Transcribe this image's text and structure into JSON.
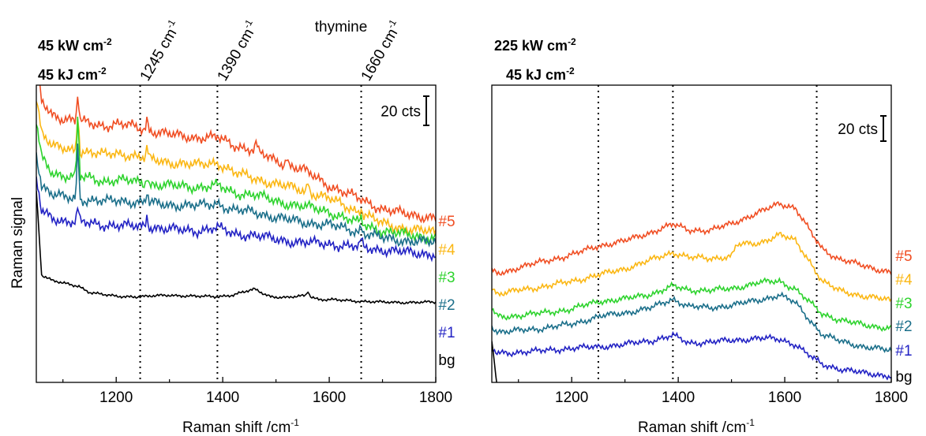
{
  "figure": {
    "ylabel": "Raman signal",
    "xlabel": "Raman shift /cm",
    "xlabel_sup": "-1",
    "center_label": "thymine"
  },
  "chart_data": [
    {
      "type": "line",
      "power_label": {
        "text": "45 kW cm",
        "sup": "-2"
      },
      "fluence_label": {
        "text": "45 kJ cm",
        "sup": "-2"
      },
      "peak_labels": [
        {
          "text": "1245 cm",
          "sup": "-1",
          "x": 1245
        },
        {
          "text": "1390 cm",
          "sup": "-1",
          "x": 1390
        },
        {
          "text": "1660 cm",
          "sup": "-1",
          "x": 1660
        }
      ],
      "scale_bar": {
        "label": "20 cts",
        "counts": 20
      },
      "xlim": [
        1050,
        1800
      ],
      "xticks": [
        1200,
        1400,
        1600,
        1800
      ],
      "vlines": [
        1245,
        1390,
        1660
      ],
      "series": [
        {
          "name": "#5",
          "color": "#f04e23",
          "x": [
            1050,
            1060,
            1080,
            1100,
            1128,
            1150,
            1180,
            1200,
            1230,
            1260,
            1300,
            1350,
            1390,
            1420,
            1460,
            1500,
            1550,
            1600,
            1650,
            1700,
            1750,
            1800
          ],
          "y": [
            127,
            101,
            92,
            89,
            87,
            86,
            84,
            85,
            84,
            81,
            78,
            76,
            76,
            71,
            67,
            60,
            54,
            43,
            35,
            27,
            23,
            21
          ],
          "spikes": [
            {
              "x": 1128,
              "h": 20
            },
            {
              "x": 1258,
              "h": 8
            },
            {
              "x": 1463,
              "h": 6
            },
            {
              "x": 1520,
              "h": 5
            }
          ]
        },
        {
          "name": "#4",
          "color": "#fbb714",
          "x": [
            1050,
            1060,
            1080,
            1100,
            1128,
            1150,
            1180,
            1200,
            1230,
            1260,
            1300,
            1350,
            1390,
            1420,
            1460,
            1500,
            1550,
            1600,
            1650,
            1700,
            1750,
            1800
          ],
          "y": [
            104,
            80,
            70,
            68,
            67,
            66,
            64,
            65,
            64,
            61,
            59,
            57,
            59,
            52,
            48,
            44,
            40,
            34,
            26,
            17,
            13,
            11
          ],
          "spikes": [
            {
              "x": 1128,
              "h": 30
            },
            {
              "x": 1258,
              "h": 8
            },
            {
              "x": 1560,
              "h": 7
            },
            {
              "x": 1660,
              "h": 4
            }
          ]
        },
        {
          "name": "#3",
          "color": "#2ed32e",
          "x": [
            1050,
            1060,
            1080,
            1100,
            1128,
            1150,
            1180,
            1200,
            1230,
            1260,
            1300,
            1350,
            1390,
            1420,
            1460,
            1500,
            1550,
            1600,
            1650,
            1700,
            1750,
            1800
          ],
          "y": [
            86,
            62,
            52,
            50,
            49,
            48,
            46,
            47,
            46,
            44,
            43,
            42,
            43,
            38,
            37,
            32,
            29,
            25,
            18,
            12,
            9,
            7
          ],
          "spikes": [
            {
              "x": 1128,
              "h": 45
            },
            {
              "x": 1258,
              "h": 7
            },
            {
              "x": 1660,
              "h": 4
            }
          ]
        },
        {
          "name": "#2",
          "color": "#1b6f8a",
          "x": [
            1050,
            1060,
            1080,
            1100,
            1128,
            1150,
            1180,
            1200,
            1230,
            1260,
            1300,
            1350,
            1390,
            1420,
            1460,
            1500,
            1550,
            1600,
            1650,
            1700,
            1750,
            1800
          ],
          "y": [
            66,
            43,
            37,
            35,
            34,
            33,
            32,
            33,
            32,
            31,
            30,
            29,
            31,
            26,
            25,
            21,
            18,
            16,
            12,
            7,
            5,
            4
          ],
          "spikes": [
            {
              "x": 1128,
              "h": 40
            },
            {
              "x": 1258,
              "h": 8
            },
            {
              "x": 1660,
              "h": 4
            }
          ]
        },
        {
          "name": "#1",
          "color": "#2323c4",
          "x": [
            1050,
            1060,
            1080,
            1100,
            1128,
            1150,
            1180,
            1200,
            1230,
            1260,
            1300,
            1350,
            1390,
            1420,
            1460,
            1500,
            1550,
            1600,
            1650,
            1700,
            1750,
            1800
          ],
          "y": [
            48,
            25,
            21,
            19,
            18,
            17,
            16,
            16,
            15,
            15,
            13,
            12,
            14,
            10,
            9,
            6,
            4,
            3,
            1,
            -1,
            -3,
            -4
          ],
          "spikes": [
            {
              "x": 1128,
              "h": 10
            },
            {
              "x": 1258,
              "h": 8
            },
            {
              "x": 1660,
              "h": 5
            }
          ]
        },
        {
          "name": "bg",
          "color": "#000000",
          "x": [
            1050,
            1060,
            1080,
            1100,
            1130,
            1150,
            1180,
            1200,
            1230,
            1260,
            1300,
            1350,
            1390,
            1420,
            1460,
            1490,
            1520,
            1560,
            1580,
            1650,
            1700,
            1800
          ],
          "y": [
            40,
            -18,
            -22,
            -24,
            -26,
            -30,
            -32,
            -33,
            -33,
            -33,
            -32,
            -33,
            -33,
            -32,
            -28,
            -33,
            -34,
            -32,
            -35,
            -36,
            -37,
            -37
          ],
          "spikes": [
            {
              "x": 1560,
              "h": 3
            }
          ]
        }
      ]
    },
    {
      "type": "line",
      "power_label": {
        "text": "225 kW cm",
        "sup": "-2"
      },
      "fluence_label": {
        "text": "45 kJ cm",
        "sup": "-2"
      },
      "scale_bar": {
        "label": "20 cts",
        "counts": 20
      },
      "xlim": [
        1050,
        1800
      ],
      "xticks": [
        1200,
        1400,
        1600,
        1800
      ],
      "vlines": [
        1250,
        1390,
        1660
      ],
      "series": [
        {
          "name": "#5",
          "color": "#f04e23",
          "x": [
            1050,
            1060,
            1080,
            1100,
            1150,
            1200,
            1250,
            1300,
            1350,
            1390,
            1420,
            1460,
            1500,
            1550,
            1590,
            1620,
            1650,
            1670,
            1700,
            1750,
            1800
          ],
          "y": [
            60,
            58,
            60,
            63,
            68,
            73,
            80,
            84,
            91,
            97,
            93,
            92,
            98,
            106,
            114,
            110,
            90,
            78,
            70,
            64,
            59
          ],
          "spikes": []
        },
        {
          "name": "#4",
          "color": "#fbb714",
          "x": [
            1050,
            1060,
            1080,
            1100,
            1150,
            1200,
            1250,
            1300,
            1350,
            1390,
            1420,
            1460,
            1500,
            1510,
            1550,
            1590,
            1620,
            1650,
            1670,
            1700,
            1750,
            1800
          ],
          "y": [
            47,
            42,
            43,
            45,
            48,
            52,
            57,
            62,
            69,
            75,
            71,
            70,
            72,
            81,
            82,
            89,
            84,
            66,
            52,
            45,
            40,
            37
          ],
          "spikes": []
        },
        {
          "name": "#3",
          "color": "#2ed32e",
          "x": [
            1050,
            1060,
            1080,
            1100,
            1150,
            1200,
            1250,
            1300,
            1350,
            1390,
            1420,
            1460,
            1500,
            1550,
            1590,
            1620,
            1650,
            1670,
            1700,
            1750,
            1800
          ],
          "y": [
            30,
            24,
            24,
            25,
            27,
            30,
            36,
            38,
            42,
            48,
            45,
            45,
            46,
            51,
            52,
            46,
            34,
            26,
            22,
            17,
            15
          ],
          "spikes": []
        },
        {
          "name": "#2",
          "color": "#1b6f8a",
          "x": [
            1050,
            1060,
            1080,
            1100,
            1150,
            1200,
            1250,
            1300,
            1350,
            1390,
            1420,
            1460,
            1500,
            1550,
            1590,
            1620,
            1650,
            1670,
            1700,
            1750,
            1800
          ],
          "y": [
            17,
            12,
            12,
            13,
            15,
            18,
            24,
            27,
            31,
            38,
            32,
            31,
            33,
            37,
            41,
            35,
            20,
            10,
            5,
            0,
            -3
          ],
          "spikes": []
        },
        {
          "name": "#1",
          "color": "#2323c4",
          "x": [
            1050,
            1060,
            1080,
            1100,
            1150,
            1200,
            1250,
            1300,
            1350,
            1390,
            1420,
            1460,
            1500,
            1550,
            1590,
            1620,
            1650,
            1670,
            1700,
            1750,
            1800
          ],
          "y": [
            -2,
            -5,
            -5,
            -4,
            -3,
            -1,
            0,
            2,
            5,
            9,
            3,
            4,
            5,
            7,
            6,
            2,
            -8,
            -14,
            -17,
            -21,
            -23
          ],
          "spikes": []
        },
        {
          "name": "bg",
          "color": "#000000",
          "x": [
            1050,
            1060,
            1080,
            1100,
            1150,
            1200,
            1250,
            1300,
            1350,
            1390,
            1420,
            1460,
            1500,
            1560,
            1600,
            1700,
            1800
          ],
          "y": [
            5,
            -31,
            -32,
            -33,
            -34,
            -34,
            -34,
            -33,
            -34,
            -34,
            -34,
            -33,
            -34,
            -34,
            -35,
            -35,
            -35
          ],
          "spikes": [
            {
              "x": 1560,
              "h": 2
            }
          ]
        }
      ]
    }
  ]
}
